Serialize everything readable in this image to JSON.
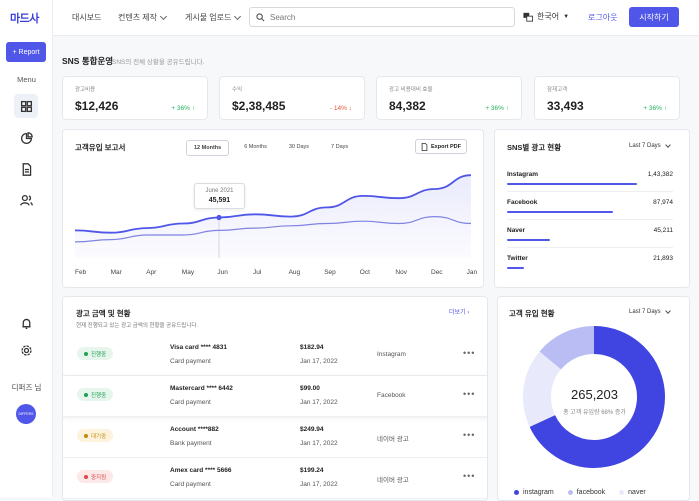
{
  "app": {
    "logo": "마드사"
  },
  "sidebar": {
    "report_label": "Report",
    "menu_label": "Menu",
    "user_name": "디퍼즈 님",
    "avatar_text": "DIFFERS"
  },
  "topnav": {
    "items": [
      {
        "label": "대시보드"
      },
      {
        "label": "컨텐츠 제작"
      },
      {
        "label": "게시물 업로드"
      }
    ],
    "search_placeholder": "Search",
    "language": "한국어",
    "login": "로그아웃",
    "start": "시작하기"
  },
  "page": {
    "title": "SNS 통합운영",
    "subtitle": "SNS의 전체 상황을 공유드립니다."
  },
  "stats": [
    {
      "label": "광고비용",
      "value": "$12,426",
      "change": "+ 36% ↑",
      "color": "#22b35e"
    },
    {
      "label": "수익",
      "value": "$2,38,485",
      "change": "- 14% ↓",
      "color": "#e6553a"
    },
    {
      "label": "광고 비용대비 효율",
      "value": "84,382",
      "change": "+ 36% ↑",
      "color": "#22b35e"
    },
    {
      "label": "잠재고객",
      "value": "33,493",
      "change": "+ 36% ↑",
      "color": "#22b35e"
    }
  ],
  "report": {
    "title": "고객유입 보고서",
    "tabs": [
      "12 Months",
      "6 Months",
      "30 Days",
      "7 Days"
    ],
    "export_label": "Export PDF",
    "months": [
      "Feb",
      "Mar",
      "Apr",
      "May",
      "Jun",
      "Jul",
      "Aug",
      "Sep",
      "Oct",
      "Nov",
      "Dec",
      "Jan"
    ],
    "tooltip": {
      "date": "June 2021",
      "value": "45,591"
    }
  },
  "chart_data": {
    "type": "line",
    "categories": [
      "Feb",
      "Mar",
      "Apr",
      "May",
      "Jun",
      "Jul",
      "Aug",
      "Sep",
      "Oct",
      "Nov",
      "Dec",
      "Jan"
    ],
    "series": [
      {
        "values": [
          40,
          39,
          41,
          43,
          45.6,
          47,
          46,
          50,
          55,
          54,
          58,
          64
        ]
      },
      {
        "values": [
          35,
          36,
          38,
          38,
          40,
          41,
          42,
          43,
          44,
          43,
          46,
          43
        ]
      }
    ],
    "colors": [
      "#4f56e8",
      "#7f84e0"
    ]
  },
  "channels": {
    "title": "SNS별 광고 현황",
    "range": "Last 7 Days",
    "items": [
      {
        "name": "Instagram",
        "count": "1,43,382",
        "fraction": 0.93
      },
      {
        "name": "Facebook",
        "count": "87,974",
        "fraction": 0.76
      },
      {
        "name": "Naver",
        "count": "45,211",
        "fraction": 0.31
      },
      {
        "name": "Twitter",
        "count": "21,893",
        "fraction": 0.12
      }
    ]
  },
  "ads": {
    "title": "광고 금액 및 현황",
    "subtitle": "현재 진행되고 있는 광고 금액의 현황을 공유드립니다.",
    "more": "더보기",
    "rows": [
      {
        "status": "진행중",
        "status_bg": "#e7f6ec",
        "status_color": "#22a055",
        "card": "Visa card  **** 4831",
        "pay": "Card payment",
        "amount": "$182.94",
        "date": "Jan 17, 2022",
        "platform": "Instagram"
      },
      {
        "status": "진행중",
        "status_bg": "#e7f6ec",
        "status_color": "#22a055",
        "card": "Mastercard  **** 6442",
        "pay": "Card payment",
        "amount": "$99.00",
        "date": "Jan 17, 2022",
        "platform": "Facebook"
      },
      {
        "status": "대기중",
        "status_bg": "#fdf3dd",
        "status_color": "#c28a15",
        "card": "Account  ****882",
        "pay": "Bank payment",
        "amount": "$249.94",
        "date": "Jan 17, 2022",
        "platform": "네이버 광고"
      },
      {
        "status": "중지됨",
        "status_bg": "#fde8e8",
        "status_color": "#d94848",
        "card": "Amex card  **** 5666",
        "pay": "Card payment",
        "amount": "$199.24",
        "date": "Jan 17, 2022",
        "platform": "네이버 광고"
      }
    ]
  },
  "inflow": {
    "title": "고객 유입 현황",
    "range": "Last 7 Days",
    "total": "265,203",
    "caption": "총 고객 유입량 68% 증가",
    "segments": [
      {
        "name": "instagram",
        "fraction": 0.68,
        "color": "#4044e0"
      },
      {
        "name": "facebook",
        "fraction": 0.14,
        "color": "#b9bdf4"
      },
      {
        "name": "naver",
        "fraction": 0.18,
        "color": "#e8e9fb"
      }
    ]
  }
}
